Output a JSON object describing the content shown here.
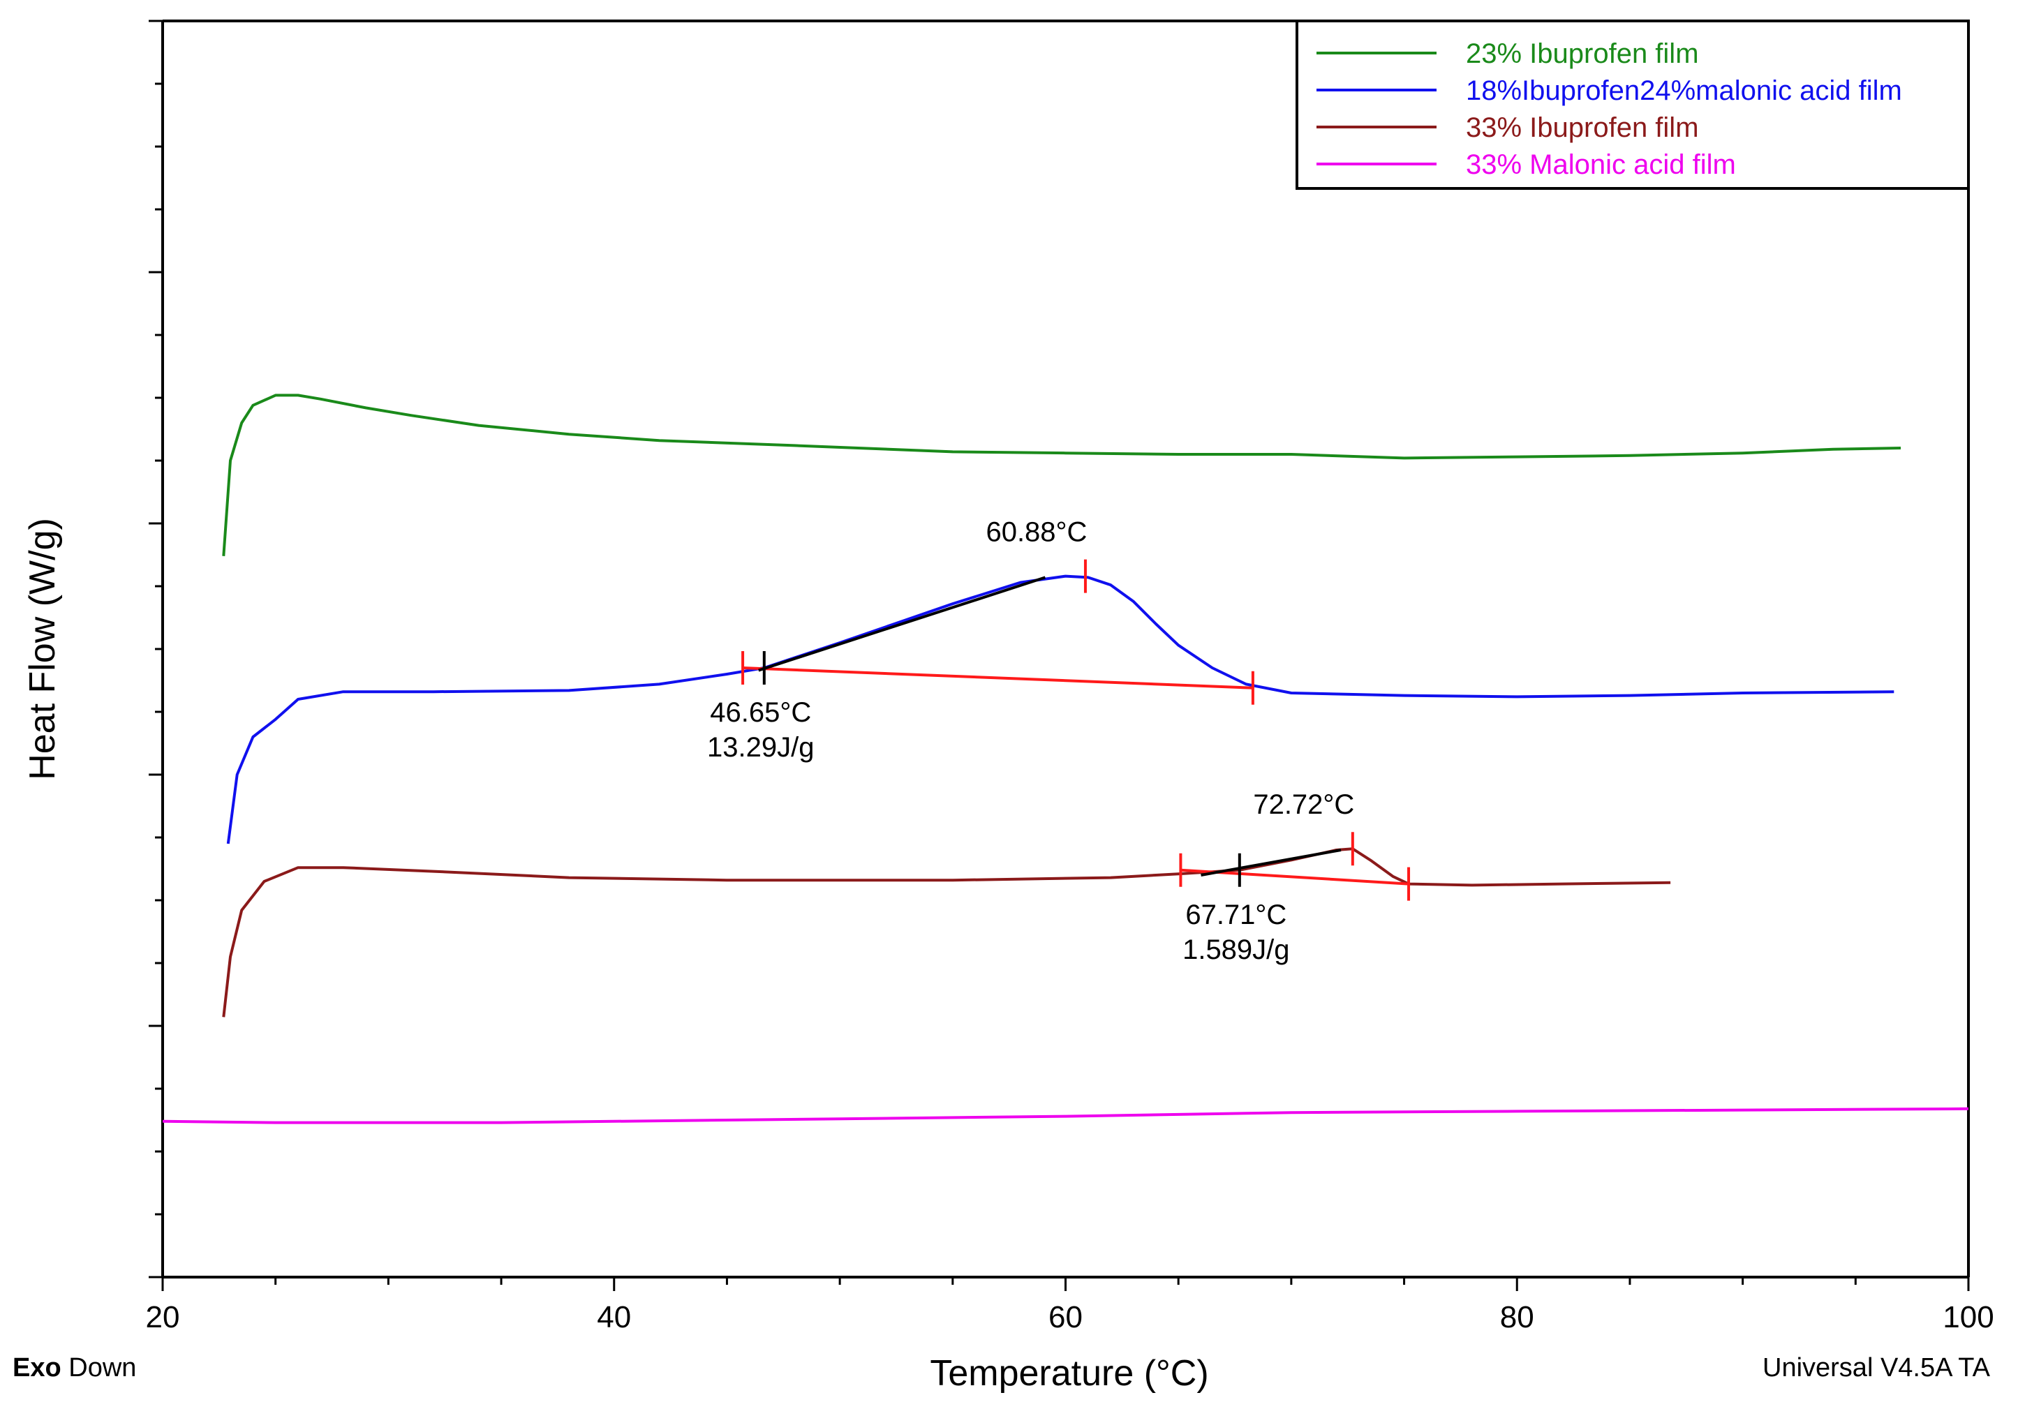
{
  "chart_data": {
    "type": "line",
    "title": "",
    "xlabel": "Temperature (°C)",
    "ylabel": "Heat Flow (W/g)",
    "xlim": [
      20,
      100
    ],
    "ylim": [
      0,
      100
    ],
    "y_tick_labels_shown": false,
    "x_ticks": [
      "20",
      "40",
      "60",
      "80",
      "100"
    ],
    "footer": {
      "exo_bold": "Exo",
      "exo_rest": " Down",
      "version": "Universal V4.5A TA"
    },
    "legend": {
      "position": "top-right"
    },
    "series": [
      {
        "name": "23% Ibuprofen film",
        "color": "#1a8a1a",
        "points": [
          [
            22.7,
            57.4
          ],
          [
            23.0,
            65.0
          ],
          [
            23.5,
            68.0
          ],
          [
            24.0,
            69.4
          ],
          [
            25.0,
            70.2
          ],
          [
            26.0,
            70.2
          ],
          [
            27.0,
            69.9
          ],
          [
            29.0,
            69.2
          ],
          [
            31.0,
            68.6
          ],
          [
            34.0,
            67.8
          ],
          [
            38.0,
            67.1
          ],
          [
            42.0,
            66.6
          ],
          [
            48.0,
            66.2
          ],
          [
            55.0,
            65.7
          ],
          [
            60.0,
            65.6
          ],
          [
            65.0,
            65.5
          ],
          [
            70.0,
            65.5
          ],
          [
            75.0,
            65.2
          ],
          [
            80.0,
            65.3
          ],
          [
            85.0,
            65.4
          ],
          [
            90.0,
            65.6
          ],
          [
            94.0,
            65.9
          ],
          [
            97.0,
            66.0
          ]
        ]
      },
      {
        "name": "18%Ibuprofen24%malonic acid film",
        "color": "#1010ee",
        "points": [
          [
            22.9,
            34.5
          ],
          [
            23.3,
            40.0
          ],
          [
            24.0,
            43.0
          ],
          [
            25.0,
            44.4
          ],
          [
            26.0,
            46.0
          ],
          [
            28.0,
            46.6
          ],
          [
            32.0,
            46.6
          ],
          [
            38.0,
            46.7
          ],
          [
            42.0,
            47.2
          ],
          [
            45.0,
            48.0
          ],
          [
            46.65,
            48.5
          ],
          [
            50.0,
            50.5
          ],
          [
            55.0,
            53.6
          ],
          [
            58.0,
            55.3
          ],
          [
            60.0,
            55.8
          ],
          [
            61.0,
            55.7
          ],
          [
            62.0,
            55.1
          ],
          [
            63.0,
            53.8
          ],
          [
            64.0,
            52.0
          ],
          [
            65.0,
            50.3
          ],
          [
            66.5,
            48.5
          ],
          [
            68.0,
            47.2
          ],
          [
            70.0,
            46.5
          ],
          [
            75.0,
            46.3
          ],
          [
            80.0,
            46.2
          ],
          [
            85.0,
            46.3
          ],
          [
            90.0,
            46.5
          ],
          [
            96.7,
            46.6
          ]
        ]
      },
      {
        "name": "33% Ibuprofen film",
        "color": "#8b1a1a",
        "points": [
          [
            22.7,
            20.7
          ],
          [
            23.0,
            25.5
          ],
          [
            23.5,
            29.2
          ],
          [
            24.5,
            31.5
          ],
          [
            26.0,
            32.6
          ],
          [
            28.0,
            32.6
          ],
          [
            32.0,
            32.3
          ],
          [
            38.0,
            31.8
          ],
          [
            45.0,
            31.6
          ],
          [
            55.0,
            31.6
          ],
          [
            62.0,
            31.8
          ],
          [
            65.0,
            32.1
          ],
          [
            67.71,
            32.4
          ],
          [
            70.0,
            33.2
          ],
          [
            72.0,
            34.0
          ],
          [
            72.72,
            34.1
          ],
          [
            73.5,
            33.2
          ],
          [
            74.5,
            31.9
          ],
          [
            75.2,
            31.3
          ],
          [
            78.0,
            31.2
          ],
          [
            82.0,
            31.3
          ],
          [
            86.8,
            31.4
          ]
        ]
      },
      {
        "name": "33% Malonic acid film",
        "color": "#ee00ee",
        "points": [
          [
            20.0,
            12.4
          ],
          [
            25.0,
            12.3
          ],
          [
            30.0,
            12.3
          ],
          [
            35.0,
            12.3
          ],
          [
            40.0,
            12.4
          ],
          [
            50.0,
            12.6
          ],
          [
            60.0,
            12.8
          ],
          [
            70.0,
            13.1
          ],
          [
            80.0,
            13.2
          ],
          [
            90.0,
            13.3
          ],
          [
            100.0,
            13.4
          ]
        ]
      }
    ],
    "annotations": [
      {
        "peak_label": "60.88°C",
        "onset_label": "46.65°C",
        "enthalpy_label": "13.29J/g",
        "baseline": [
          [
            45.7,
            48.5
          ],
          [
            68.3,
            46.9
          ]
        ],
        "onset_marks": [
          45.7,
          68.3
        ],
        "onset_black": [
          46.65,
          48.5
        ],
        "tangent": [
          [
            46.4,
            48.3
          ],
          [
            59.1,
            55.7
          ]
        ],
        "peak_mark": [
          60.88,
          55.8
        ]
      },
      {
        "peak_label": "72.72°C",
        "onset_label": "67.71°C",
        "enthalpy_label": "1.589J/g",
        "baseline": [
          [
            65.1,
            32.4
          ],
          [
            75.2,
            31.3
          ]
        ],
        "onset_marks": [
          65.1,
          75.2
        ],
        "onset_black": [
          67.71,
          32.4
        ],
        "tangent": [
          [
            66.0,
            32.0
          ],
          [
            72.2,
            34.0
          ]
        ],
        "peak_mark": [
          72.72,
          34.1
        ]
      }
    ]
  }
}
